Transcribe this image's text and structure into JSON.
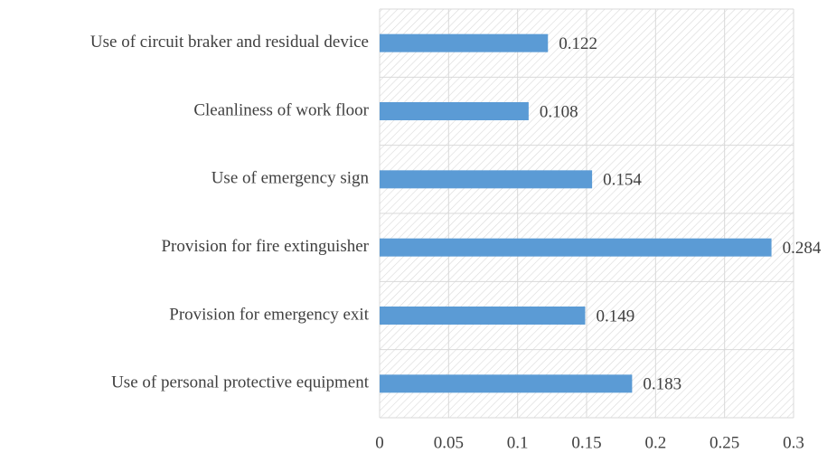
{
  "chart_data": {
    "type": "bar",
    "orientation": "horizontal",
    "categories": [
      "Use of circuit braker and residual device",
      "Cleanliness of work floor",
      "Use of emergency sign",
      "Provision for fire extinguisher",
      "Provision for emergency exit",
      "Use of personal protective equipment"
    ],
    "values": [
      0.122,
      0.108,
      0.154,
      0.284,
      0.149,
      0.183
    ],
    "color": "#5b9bd5",
    "xlim": [
      0,
      0.3
    ],
    "xticks": [
      0,
      0.05,
      0.1,
      0.15,
      0.2,
      0.25,
      0.3
    ],
    "grid": true,
    "data_labels": true
  }
}
